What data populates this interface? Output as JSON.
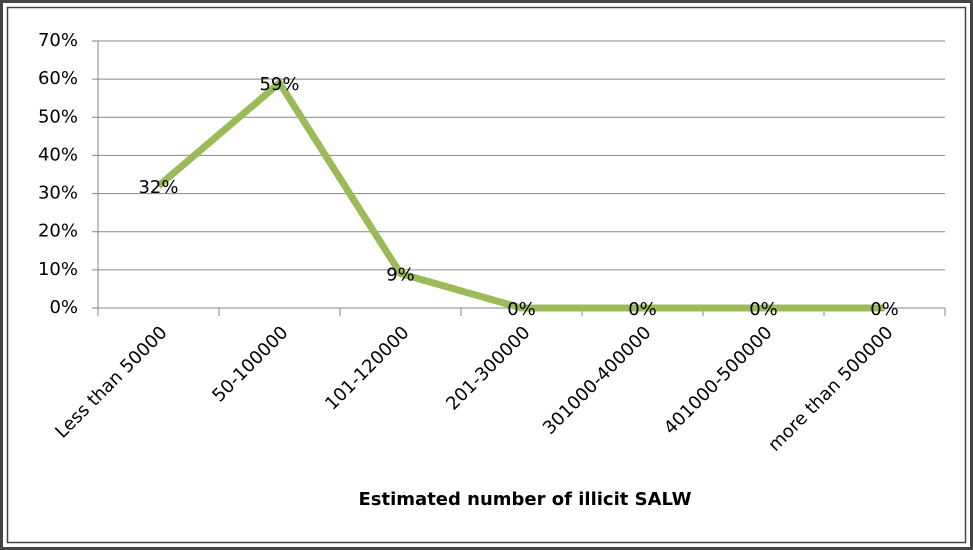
{
  "chart_data": {
    "type": "line",
    "x_label": "Estimated number of illicit SALW",
    "categories": [
      "Less than 50000",
      "50-100000",
      "101-120000",
      "201-300000",
      "301000-400000",
      "401000-500000",
      "more than 500000"
    ],
    "series": [
      {
        "color": "#9bbb59",
        "values": [
          32,
          59,
          9,
          0,
          0,
          0,
          0
        ],
        "value_labels": [
          "32%",
          "59%",
          "9%",
          "0%",
          "0%",
          "0%",
          "0%"
        ]
      }
    ],
    "ylim": [
      0,
      70
    ],
    "yticks": [
      {
        "value": 0,
        "label": "0%"
      },
      {
        "value": 10,
        "label": "10%"
      },
      {
        "value": 20,
        "label": "20%"
      },
      {
        "value": 30,
        "label": "30%"
      },
      {
        "value": 40,
        "label": "40%"
      },
      {
        "value": 50,
        "label": "50%"
      },
      {
        "value": 60,
        "label": "60%"
      },
      {
        "value": 70,
        "label": "70%"
      }
    ],
    "grid": true
  }
}
